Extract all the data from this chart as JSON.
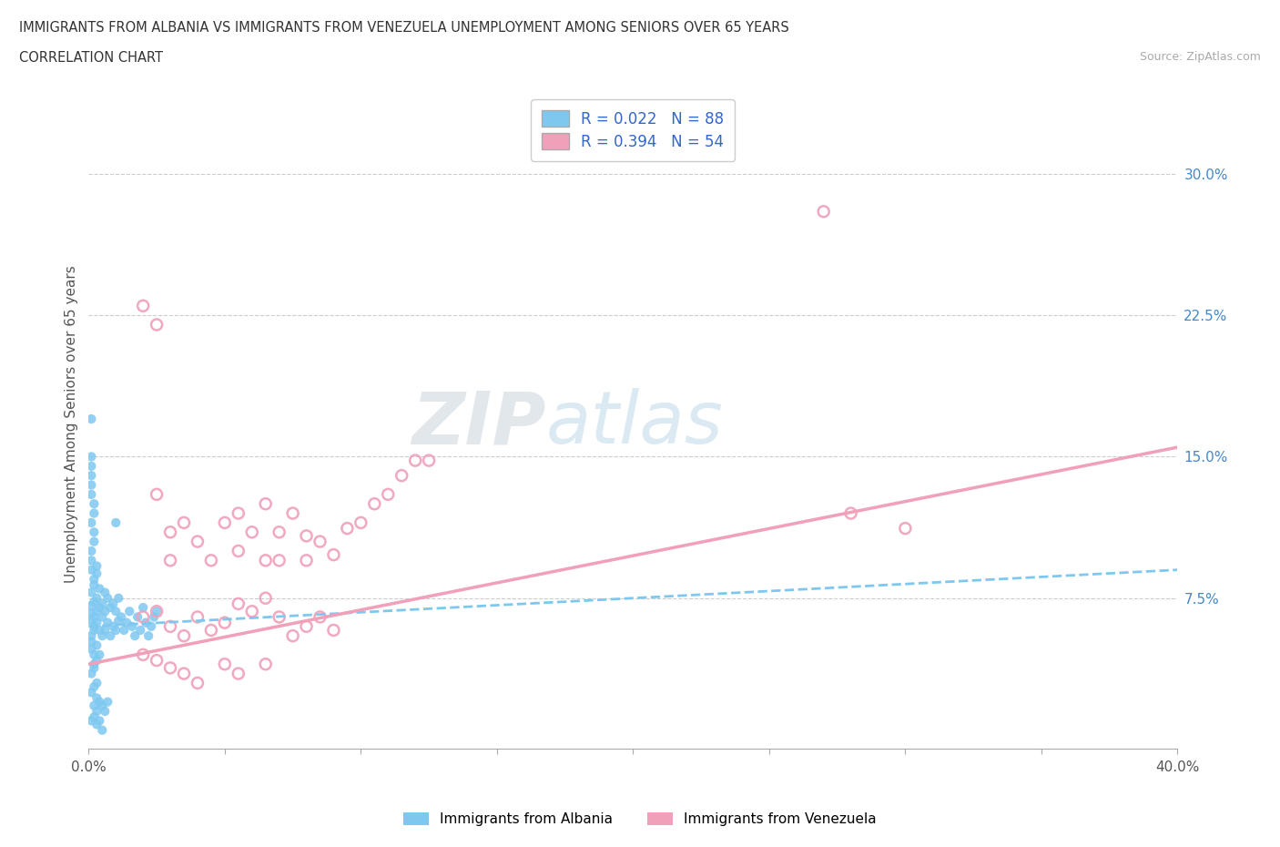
{
  "title_line1": "IMMIGRANTS FROM ALBANIA VS IMMIGRANTS FROM VENEZUELA UNEMPLOYMENT AMONG SENIORS OVER 65 YEARS",
  "title_line2": "CORRELATION CHART",
  "source": "Source: ZipAtlas.com",
  "ylabel": "Unemployment Among Seniors over 65 years",
  "xlim": [
    0.0,
    0.4
  ],
  "ylim": [
    -0.005,
    0.34
  ],
  "yticks_right": [
    0.075,
    0.15,
    0.225,
    0.3
  ],
  "ytick_labels_right": [
    "7.5%",
    "15.0%",
    "22.5%",
    "30.0%"
  ],
  "albania_color": "#7ec8f0",
  "venezuela_color": "#f0a0b8",
  "legend_label_albania": "R = 0.022   N = 88",
  "legend_label_venezuela": "R = 0.394   N = 54",
  "bottom_legend_albania": "Immigrants from Albania",
  "bottom_legend_venezuela": "Immigrants from Venezuela",
  "watermark_zip": "ZIP",
  "watermark_atlas": "atlas",
  "background_color": "#ffffff",
  "grid_color": "#cccccc",
  "alb_trend_x": [
    0.0,
    0.4
  ],
  "alb_trend_y": [
    0.06,
    0.09
  ],
  "ven_trend_x": [
    0.0,
    0.4
  ],
  "ven_trend_y": [
    0.04,
    0.155
  ],
  "albania_scatter_x": [
    0.001,
    0.001,
    0.001,
    0.001,
    0.001,
    0.002,
    0.002,
    0.002,
    0.002,
    0.002,
    0.002,
    0.003,
    0.003,
    0.003,
    0.003,
    0.003,
    0.004,
    0.004,
    0.004,
    0.004,
    0.005,
    0.005,
    0.005,
    0.006,
    0.006,
    0.006,
    0.007,
    0.007,
    0.008,
    0.008,
    0.009,
    0.009,
    0.01,
    0.01,
    0.011,
    0.011,
    0.012,
    0.013,
    0.014,
    0.015,
    0.016,
    0.017,
    0.018,
    0.019,
    0.02,
    0.021,
    0.022,
    0.023,
    0.024,
    0.025,
    0.001,
    0.001,
    0.002,
    0.002,
    0.003,
    0.003,
    0.004,
    0.005,
    0.006,
    0.007,
    0.001,
    0.002,
    0.003,
    0.004,
    0.005,
    0.001,
    0.002,
    0.003,
    0.001,
    0.002,
    0.001,
    0.002,
    0.001,
    0.002,
    0.003,
    0.001,
    0.002,
    0.001,
    0.003,
    0.001,
    0.002,
    0.001,
    0.002,
    0.001,
    0.001,
    0.001,
    0.001,
    0.01
  ],
  "albania_scatter_y": [
    0.067,
    0.071,
    0.055,
    0.063,
    0.078,
    0.06,
    0.073,
    0.058,
    0.082,
    0.065,
    0.04,
    0.068,
    0.075,
    0.05,
    0.062,
    0.088,
    0.058,
    0.07,
    0.045,
    0.08,
    0.065,
    0.072,
    0.055,
    0.068,
    0.058,
    0.078,
    0.062,
    0.075,
    0.055,
    0.07,
    0.06,
    0.072,
    0.058,
    0.068,
    0.063,
    0.075,
    0.065,
    0.058,
    0.062,
    0.068,
    0.06,
    0.055,
    0.065,
    0.058,
    0.07,
    0.062,
    0.055,
    0.06,
    0.065,
    0.068,
    0.035,
    0.025,
    0.028,
    0.018,
    0.022,
    0.015,
    0.02,
    0.018,
    0.015,
    0.02,
    0.01,
    0.012,
    0.008,
    0.01,
    0.005,
    0.048,
    0.038,
    0.03,
    0.095,
    0.105,
    0.115,
    0.12,
    0.09,
    0.085,
    0.092,
    0.1,
    0.11,
    0.17,
    0.042,
    0.052,
    0.045,
    0.13,
    0.125,
    0.135,
    0.14,
    0.145,
    0.15,
    0.115
  ],
  "venezuela_scatter_x": [
    0.025,
    0.03,
    0.03,
    0.035,
    0.04,
    0.045,
    0.05,
    0.055,
    0.055,
    0.06,
    0.065,
    0.065,
    0.07,
    0.07,
    0.075,
    0.08,
    0.08,
    0.085,
    0.09,
    0.095,
    0.1,
    0.105,
    0.11,
    0.115,
    0.12,
    0.125,
    0.27,
    0.02,
    0.025,
    0.03,
    0.035,
    0.04,
    0.045,
    0.05,
    0.055,
    0.06,
    0.065,
    0.07,
    0.075,
    0.08,
    0.085,
    0.09,
    0.02,
    0.025,
    0.03,
    0.035,
    0.04,
    0.05,
    0.055,
    0.065,
    0.28,
    0.3,
    0.02,
    0.025
  ],
  "venezuela_scatter_y": [
    0.13,
    0.095,
    0.11,
    0.115,
    0.105,
    0.095,
    0.115,
    0.12,
    0.1,
    0.11,
    0.125,
    0.095,
    0.11,
    0.095,
    0.12,
    0.108,
    0.095,
    0.105,
    0.098,
    0.112,
    0.115,
    0.125,
    0.13,
    0.14,
    0.148,
    0.148,
    0.28,
    0.065,
    0.068,
    0.06,
    0.055,
    0.065,
    0.058,
    0.062,
    0.072,
    0.068,
    0.075,
    0.065,
    0.055,
    0.06,
    0.065,
    0.058,
    0.045,
    0.042,
    0.038,
    0.035,
    0.03,
    0.04,
    0.035,
    0.04,
    0.12,
    0.112,
    0.23,
    0.22
  ]
}
